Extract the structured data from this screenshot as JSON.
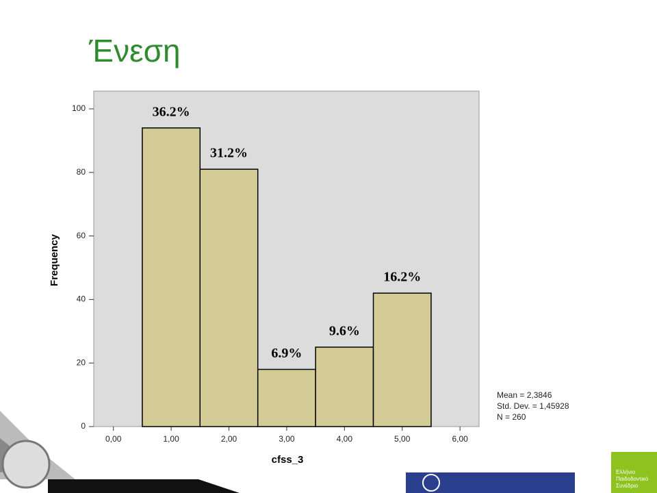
{
  "chart_data": {
    "type": "histogram",
    "title": "Ένεση",
    "xlabel": "cfss_3",
    "ylabel": "Frequency",
    "bins": [
      0.5,
      1.5,
      2.5,
      3.5,
      4.5,
      5.5
    ],
    "values": [
      94,
      81,
      18,
      25,
      42
    ],
    "annotations": [
      "36.2%",
      "31.2%",
      "6.9%",
      "9.6%",
      "16.2%"
    ],
    "color": "#d3cc96",
    "xlim": [
      -0.34,
      6.33
    ],
    "xticks": [
      {
        "value": 0,
        "label": "0,00"
      },
      {
        "value": 1,
        "label": "1,00"
      },
      {
        "value": 2,
        "label": "2,00"
      },
      {
        "value": 3,
        "label": "3,00"
      },
      {
        "value": 4,
        "label": "4,00"
      },
      {
        "value": 5,
        "label": "5,00"
      },
      {
        "value": 6,
        "label": "6,00"
      }
    ],
    "ylim": [
      0,
      105.6
    ],
    "yticks": [
      0,
      20,
      40,
      60,
      80,
      100
    ],
    "stats": [
      "Mean = 2,3846",
      "Std. Dev. = 1,45928",
      "N = 260"
    ]
  },
  "logo_text": [
    "Ελλήνιο",
    "Παιδοδοντικό",
    "Συνέδριο"
  ]
}
